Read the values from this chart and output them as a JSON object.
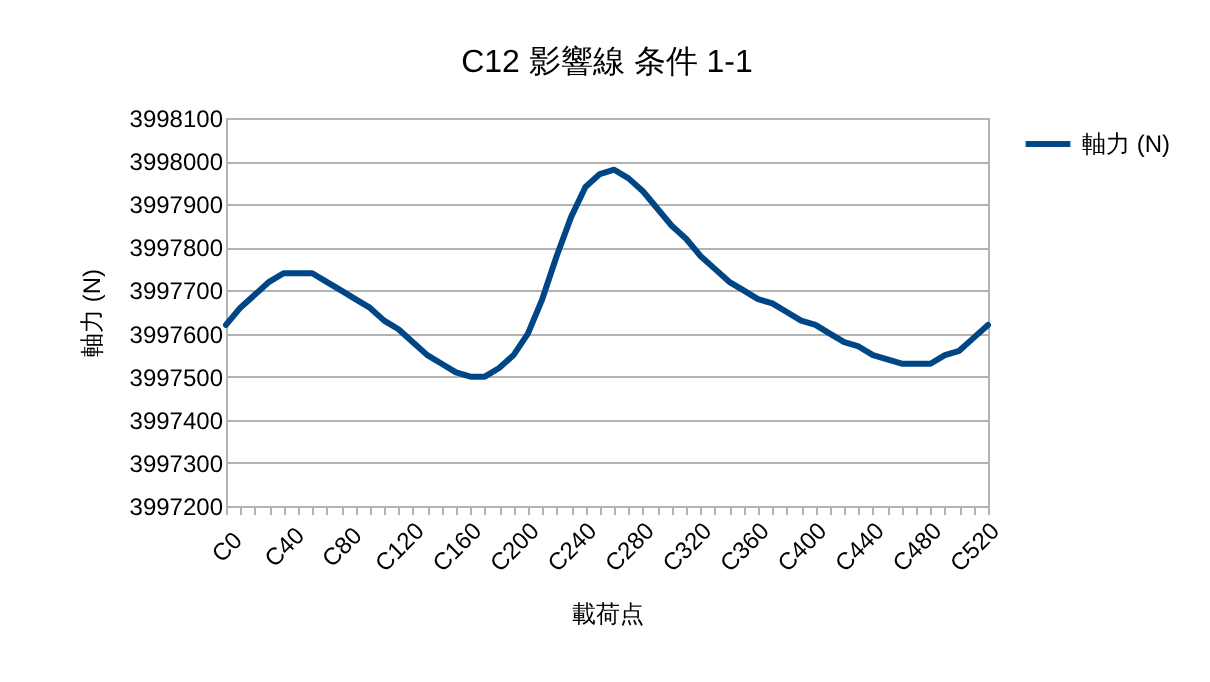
{
  "chart_data": {
    "type": "line",
    "title": "C12 影響線 条件 1-1",
    "xlabel": "載荷点",
    "ylabel": "軸力 (N)",
    "categories": [
      "C0",
      null,
      null,
      null,
      "C40",
      null,
      null,
      null,
      "C80",
      null,
      null,
      null,
      "C120",
      null,
      null,
      null,
      "C160",
      null,
      null,
      null,
      "C200",
      null,
      null,
      null,
      "C240",
      null,
      null,
      null,
      "C280",
      null,
      null,
      null,
      "C320",
      null,
      null,
      null,
      "C360",
      null,
      null,
      null,
      "C400",
      null,
      null,
      null,
      "C440",
      null,
      null,
      null,
      "C480",
      null,
      null,
      null,
      "C520",
      null
    ],
    "series": [
      {
        "name": "軸力 (N)",
        "color": "#004586",
        "values": [
          3997620,
          3997660,
          3997690,
          3997720,
          3997740,
          3997740,
          3997740,
          3997720,
          3997700,
          3997680,
          3997660,
          3997630,
          3997610,
          3997580,
          3997550,
          3997530,
          3997510,
          3997500,
          3997500,
          3997520,
          3997550,
          3997600,
          3997680,
          3997780,
          3997870,
          3997940,
          3997970,
          3997980,
          3997960,
          3997930,
          3997890,
          3997850,
          3997820,
          3997780,
          3997750,
          3997720,
          3997700,
          3997680,
          3997670,
          3997650,
          3997630,
          3997620,
          3997600,
          3997580,
          3997570,
          3997550,
          3997540,
          3997530,
          3997530,
          3997530,
          3997550,
          3997560,
          3997590,
          3997620
        ]
      }
    ],
    "ylim": [
      3997200,
      3998100
    ],
    "yticks": [
      3997200,
      3997300,
      3997400,
      3997500,
      3997600,
      3997700,
      3997800,
      3997900,
      3998000,
      3998100
    ],
    "grid": "y",
    "legend": "right",
    "marker": "none",
    "line_style": "solid"
  }
}
